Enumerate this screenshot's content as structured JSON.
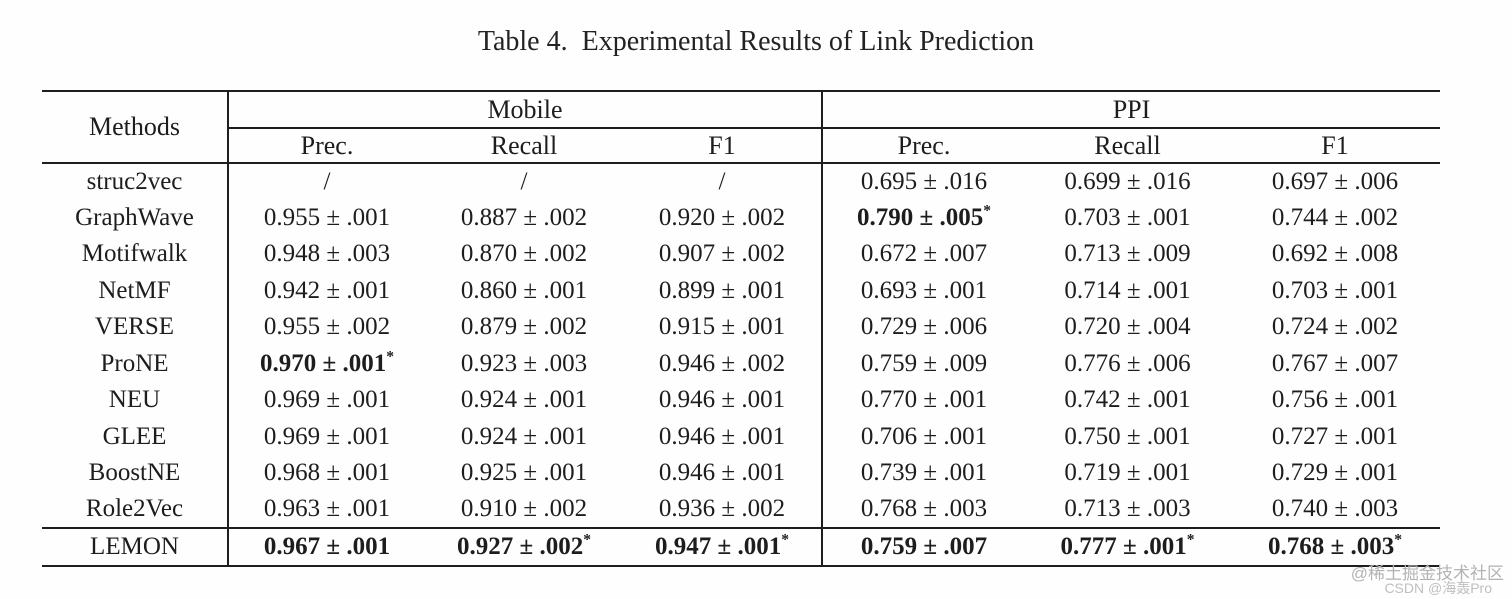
{
  "caption": "Table 4.  Experimental Results of Link Prediction",
  "table": {
    "methods_header": "Methods",
    "groups": [
      {
        "label": "Mobile",
        "columns": [
          "Prec.",
          "Recall",
          "F1"
        ]
      },
      {
        "label": "PPI",
        "columns": [
          "Prec.",
          "Recall",
          "F1"
        ]
      }
    ],
    "rows": [
      {
        "method": "struc2vec",
        "cells": [
          {
            "text": "/",
            "bold": false,
            "star": false
          },
          {
            "text": "/",
            "bold": false,
            "star": false
          },
          {
            "text": "/",
            "bold": false,
            "star": false
          },
          {
            "text": "0.695 ± .016",
            "bold": false,
            "star": false
          },
          {
            "text": "0.699 ± .016",
            "bold": false,
            "star": false
          },
          {
            "text": "0.697 ± .006",
            "bold": false,
            "star": false
          }
        ]
      },
      {
        "method": "GraphWave",
        "cells": [
          {
            "text": "0.955 ± .001",
            "bold": false,
            "star": false
          },
          {
            "text": "0.887 ± .002",
            "bold": false,
            "star": false
          },
          {
            "text": "0.920 ± .002",
            "bold": false,
            "star": false
          },
          {
            "text": "0.790 ± .005",
            "bold": true,
            "star": true
          },
          {
            "text": "0.703 ± .001",
            "bold": false,
            "star": false
          },
          {
            "text": "0.744 ± .002",
            "bold": false,
            "star": false
          }
        ]
      },
      {
        "method": "Motifwalk",
        "cells": [
          {
            "text": "0.948 ± .003",
            "bold": false,
            "star": false
          },
          {
            "text": "0.870 ± .002",
            "bold": false,
            "star": false
          },
          {
            "text": "0.907 ± .002",
            "bold": false,
            "star": false
          },
          {
            "text": "0.672 ± .007",
            "bold": false,
            "star": false
          },
          {
            "text": "0.713 ± .009",
            "bold": false,
            "star": false
          },
          {
            "text": "0.692 ± .008",
            "bold": false,
            "star": false
          }
        ]
      },
      {
        "method": "NetMF",
        "cells": [
          {
            "text": "0.942 ± .001",
            "bold": false,
            "star": false
          },
          {
            "text": "0.860 ± .001",
            "bold": false,
            "star": false
          },
          {
            "text": "0.899 ± .001",
            "bold": false,
            "star": false
          },
          {
            "text": "0.693 ± .001",
            "bold": false,
            "star": false
          },
          {
            "text": "0.714 ± .001",
            "bold": false,
            "star": false
          },
          {
            "text": "0.703 ± .001",
            "bold": false,
            "star": false
          }
        ]
      },
      {
        "method": "VERSE",
        "cells": [
          {
            "text": "0.955 ± .002",
            "bold": false,
            "star": false
          },
          {
            "text": "0.879 ± .002",
            "bold": false,
            "star": false
          },
          {
            "text": "0.915 ± .001",
            "bold": false,
            "star": false
          },
          {
            "text": "0.729 ± .006",
            "bold": false,
            "star": false
          },
          {
            "text": "0.720 ± .004",
            "bold": false,
            "star": false
          },
          {
            "text": "0.724 ± .002",
            "bold": false,
            "star": false
          }
        ]
      },
      {
        "method": "ProNE",
        "cells": [
          {
            "text": "0.970 ± .001",
            "bold": true,
            "star": true
          },
          {
            "text": "0.923 ± .003",
            "bold": false,
            "star": false
          },
          {
            "text": "0.946 ± .002",
            "bold": false,
            "star": false
          },
          {
            "text": "0.759 ± .009",
            "bold": false,
            "star": false
          },
          {
            "text": "0.776 ± .006",
            "bold": false,
            "star": false
          },
          {
            "text": "0.767 ± .007",
            "bold": false,
            "star": false
          }
        ]
      },
      {
        "method": "NEU",
        "cells": [
          {
            "text": "0.969 ± .001",
            "bold": false,
            "star": false
          },
          {
            "text": "0.924 ± .001",
            "bold": false,
            "star": false
          },
          {
            "text": "0.946 ± .001",
            "bold": false,
            "star": false
          },
          {
            "text": "0.770 ± .001",
            "bold": false,
            "star": false
          },
          {
            "text": "0.742 ± .001",
            "bold": false,
            "star": false
          },
          {
            "text": "0.756 ± .001",
            "bold": false,
            "star": false
          }
        ]
      },
      {
        "method": "GLEE",
        "cells": [
          {
            "text": "0.969 ± .001",
            "bold": false,
            "star": false
          },
          {
            "text": "0.924 ± .001",
            "bold": false,
            "star": false
          },
          {
            "text": "0.946 ± .001",
            "bold": false,
            "star": false
          },
          {
            "text": "0.706 ± .001",
            "bold": false,
            "star": false
          },
          {
            "text": "0.750 ± .001",
            "bold": false,
            "star": false
          },
          {
            "text": "0.727 ± .001",
            "bold": false,
            "star": false
          }
        ]
      },
      {
        "method": "BoostNE",
        "cells": [
          {
            "text": "0.968 ± .001",
            "bold": false,
            "star": false
          },
          {
            "text": "0.925 ± .001",
            "bold": false,
            "star": false
          },
          {
            "text": "0.946 ± .001",
            "bold": false,
            "star": false
          },
          {
            "text": "0.739 ± .001",
            "bold": false,
            "star": false
          },
          {
            "text": "0.719 ± .001",
            "bold": false,
            "star": false
          },
          {
            "text": "0.729 ± .001",
            "bold": false,
            "star": false
          }
        ]
      },
      {
        "method": "Role2Vec",
        "cells": [
          {
            "text": "0.963 ± .001",
            "bold": false,
            "star": false
          },
          {
            "text": "0.910 ± .002",
            "bold": false,
            "star": false
          },
          {
            "text": "0.936 ± .002",
            "bold": false,
            "star": false
          },
          {
            "text": "0.768 ± .003",
            "bold": false,
            "star": false
          },
          {
            "text": "0.713 ± .003",
            "bold": false,
            "star": false
          },
          {
            "text": "0.740 ± .003",
            "bold": false,
            "star": false
          }
        ]
      },
      {
        "method": "LEMON",
        "cells": [
          {
            "text": "0.967 ± .001",
            "bold": true,
            "star": false
          },
          {
            "text": "0.927 ± .002",
            "bold": true,
            "star": true
          },
          {
            "text": "0.947 ± .001",
            "bold": true,
            "star": true
          },
          {
            "text": "0.759 ± .007",
            "bold": true,
            "star": false
          },
          {
            "text": "0.777 ± .001",
            "bold": true,
            "star": true
          },
          {
            "text": "0.768 ± .003",
            "bold": true,
            "star": true
          }
        ]
      }
    ]
  },
  "watermarks": {
    "juejin": "@稀土掘金技术社区",
    "csdn": "CSDN @海轰Pro"
  }
}
